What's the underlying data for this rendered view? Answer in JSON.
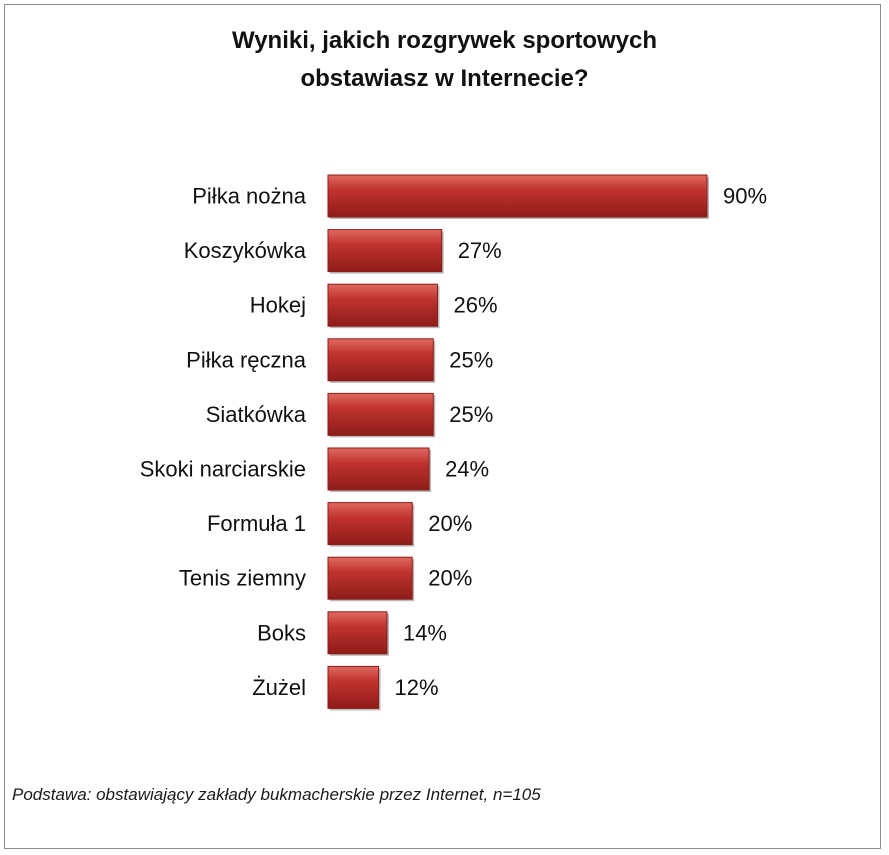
{
  "chart_data": {
    "type": "bar",
    "orientation": "horizontal",
    "title_lines": [
      "Wyniki, jakich rozgrywek sportowych",
      "obstawiasz w Internecie?"
    ],
    "categories": [
      "Piłka nożna",
      "Koszykówka",
      "Hokej",
      "Piłka ręczna",
      "Siatkówka",
      "Skoki narciarskie",
      "Formuła 1",
      "Tenis ziemny",
      "Boks",
      "Żużel"
    ],
    "values": [
      90,
      27,
      26,
      25,
      25,
      24,
      20,
      20,
      14,
      12
    ],
    "value_labels": [
      "90%",
      "27%",
      "26%",
      "25%",
      "25%",
      "24%",
      "20%",
      "20%",
      "14%",
      "12%"
    ],
    "unit": "%",
    "xlim": [
      0,
      100
    ],
    "grid": false,
    "legend": "none",
    "bar_color": "#c0332f",
    "bar_color_light": "#e06a60",
    "bar_color_dark": "#8e1c18"
  },
  "footnote": "Podstawa: obstawiający zakłady bukmacherskie przez Internet, n=105"
}
